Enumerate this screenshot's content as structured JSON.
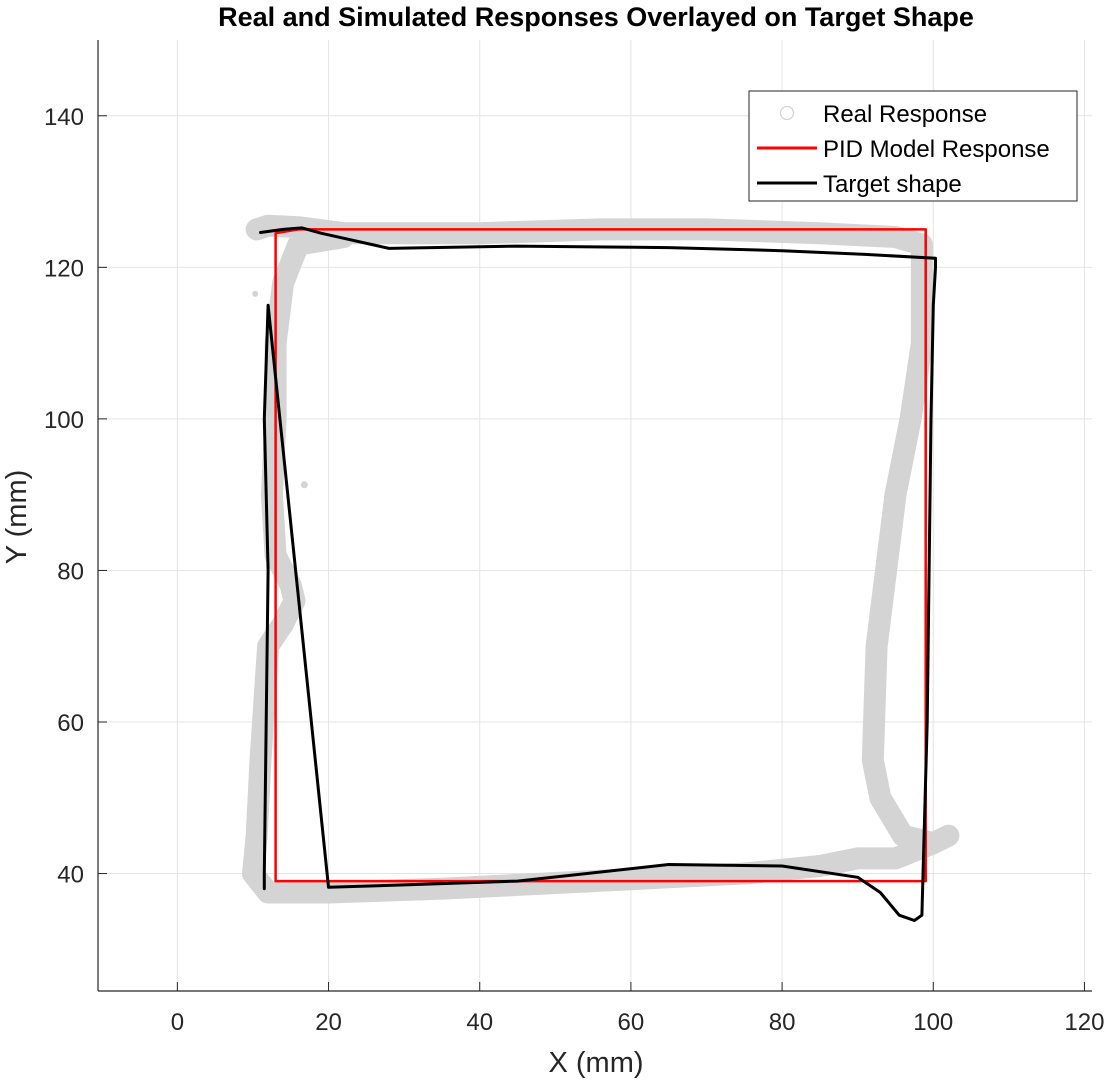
{
  "chart_data": {
    "type": "line",
    "title": "Real and Simulated Responses Overlayed on Target Shape",
    "xlabel": "X (mm)",
    "ylabel": "Y (mm)",
    "xlim": [
      -10.5,
      121
    ],
    "ylim": [
      24.5,
      150
    ],
    "xticks": [
      0,
      20,
      40,
      60,
      80,
      100,
      120
    ],
    "yticks": [
      40,
      60,
      80,
      100,
      120,
      140
    ],
    "grid": true,
    "legend_position": "top-right",
    "series": [
      {
        "name": "Real Response",
        "style": "markers",
        "color": "#d4d4d4",
        "x": [
          10.5,
          12,
          16,
          22,
          40,
          56,
          70,
          85,
          95,
          98.5,
          98.5,
          97,
          95,
          92.5,
          92,
          93,
          96,
          100,
          102,
          100,
          95,
          90,
          85,
          75,
          65,
          55,
          45,
          35,
          20,
          12,
          10,
          10.5,
          11,
          12,
          14,
          15.5,
          15,
          13,
          12.5,
          13,
          13,
          14,
          16,
          22
        ],
        "y": [
          125,
          125.5,
          125.3,
          124.5,
          124.5,
          125,
          125,
          124.5,
          124,
          123,
          110,
          100,
          90,
          70,
          55,
          50,
          45,
          44,
          45,
          44,
          42,
          42,
          41,
          40,
          39.5,
          39,
          38.5,
          38,
          37.5,
          37.5,
          40,
          45,
          55,
          70,
          73,
          76,
          78,
          82,
          90,
          100,
          110,
          118,
          123,
          124
        ]
      },
      {
        "name": "PID Model Response",
        "style": "line",
        "color": "#ff0000",
        "x": [
          13,
          13,
          16,
          99,
          99,
          13
        ],
        "y": [
          39,
          124.5,
          125,
          125,
          39,
          39
        ]
      },
      {
        "name": "Target shape",
        "style": "line",
        "color": "#000000",
        "x": [
          11.5,
          11.5,
          12,
          11.5,
          12,
          20,
          30,
          45,
          65,
          80,
          90,
          93,
          95.5,
          97.5,
          98.5,
          99.2,
          99.7,
          100,
          100.3,
          100.3,
          91,
          80,
          65,
          55,
          45,
          28,
          19,
          16.5,
          14,
          11
        ],
        "y": [
          38,
          40,
          80,
          100,
          115,
          38.2,
          38.5,
          39,
          41.2,
          41,
          39.5,
          37.5,
          34.5,
          33.8,
          34.5,
          60,
          100,
          115,
          120,
          121.2,
          121.7,
          122.2,
          122.6,
          122.7,
          122.8,
          122.5,
          124.5,
          125.2,
          125,
          124.6
        ]
      }
    ]
  }
}
